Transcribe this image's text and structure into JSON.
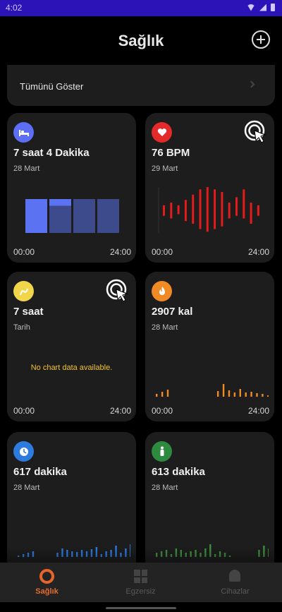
{
  "status_bar": {
    "time": "4:02"
  },
  "header": {
    "title": "Sağlık"
  },
  "show_all": {
    "label": "Tümünü Göster"
  },
  "cards": {
    "sleep": {
      "value": "7 saat 4 Dakika",
      "date": "28 Mart",
      "time_start": "00:00",
      "time_end": "24:00",
      "color": "#5b6ef5",
      "icon": "bed-icon",
      "chart_data": {
        "type": "bar",
        "segments": [
          {
            "deep": 1.0,
            "light": 0.0
          },
          {
            "deep": 0.2,
            "light": 0.8
          },
          {
            "deep": 0.0,
            "light": 1.0
          },
          {
            "deep": 0.0,
            "light": 1.0
          }
        ]
      }
    },
    "heart": {
      "value": "76 BPM",
      "date": "29 Mart",
      "time_start": "00:00",
      "time_end": "24:00",
      "color": "#e32b2b",
      "icon": "heart-icon",
      "chart_data": {
        "type": "bar",
        "ranges": [
          [
            0.35,
            0.55
          ],
          [
            0.3,
            0.6
          ],
          [
            0.38,
            0.55
          ],
          [
            0.25,
            0.65
          ],
          [
            0.2,
            0.75
          ],
          [
            0.1,
            0.85
          ],
          [
            0.05,
            0.9
          ],
          [
            0.1,
            0.85
          ],
          [
            0.15,
            0.8
          ],
          [
            0.3,
            0.6
          ],
          [
            0.35,
            0.7
          ],
          [
            0.3,
            0.85
          ],
          [
            0.2,
            0.6
          ],
          [
            0.35,
            0.55
          ]
        ]
      }
    },
    "stress": {
      "value": "7 saat",
      "date": "Tarih",
      "time_start": "00:00",
      "time_end": "24:00",
      "color": "#f2d64a",
      "icon": "stress-icon",
      "no_data": "No chart data available."
    },
    "calories": {
      "value": "2907 kal",
      "date": "28 Mart",
      "time_start": "00:00",
      "time_end": "24:00",
      "color": "#f08a24",
      "icon": "flame-icon",
      "chart_data": {
        "type": "bar",
        "values": [
          0.2,
          0.35,
          0.5,
          0,
          0,
          0,
          0,
          0,
          0,
          0,
          0,
          0.4,
          0.9,
          0.45,
          0.3,
          0.55,
          0.3,
          0.35,
          0.25,
          0.2,
          0.1
        ]
      }
    },
    "activity": {
      "value": "617 dakika",
      "date": "28 Mart",
      "time_start": "00:00",
      "time_end": "24:00",
      "color": "#2e7be0",
      "icon": "clock-icon",
      "chart_data": {
        "type": "bar",
        "values": [
          0.1,
          0.2,
          0.3,
          0.4,
          0,
          0,
          0,
          0,
          0.3,
          0.6,
          0.5,
          0.4,
          0.35,
          0.5,
          0.4,
          0.55,
          0.7,
          0.2,
          0.4,
          0.5,
          0.8,
          0.3,
          0.6,
          0.9
        ]
      }
    },
    "steps": {
      "value": "613 dakika",
      "date": "28 Mart",
      "time_start": "00:00",
      "time_end": "24:00",
      "color": "#2e8a3e",
      "icon": "person-icon",
      "chart_data": {
        "type": "bar",
        "values": [
          0.3,
          0.4,
          0.5,
          0.2,
          0.6,
          0.5,
          0.3,
          0.4,
          0.5,
          0.3,
          0.6,
          0.9,
          0.2,
          0.4,
          0.3,
          0.1,
          0,
          0,
          0,
          0,
          0,
          0.5,
          0.8,
          0.6
        ]
      }
    }
  },
  "nav": {
    "health": "Sağlık",
    "exercise": "Egzersiz",
    "devices": "Cihazlar"
  }
}
